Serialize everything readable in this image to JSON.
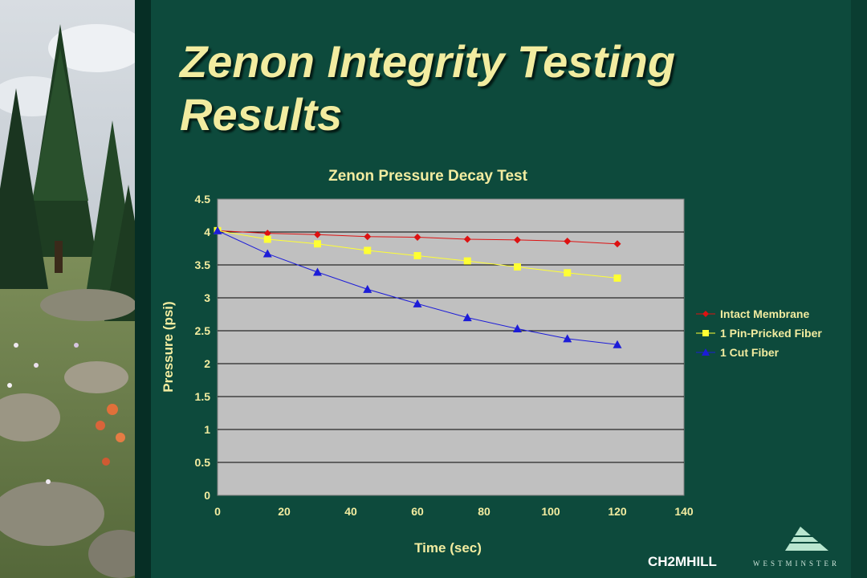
{
  "slide": {
    "title": "Zenon Integrity Testing Results"
  },
  "colors": {
    "background": "#0d4a3c",
    "title": "#f2eca0",
    "chart_text": "#f2eca0",
    "plot_area": "#c0c0c0"
  },
  "branding": {
    "company": "CH2MHILL",
    "mark": "WESTMINSTER"
  },
  "chart_data": {
    "type": "line",
    "title": "Zenon Pressure Decay Test",
    "xlabel": "Time (sec)",
    "ylabel": "Pressure (psi)",
    "xlim": [
      0,
      140
    ],
    "ylim": [
      0,
      4.5
    ],
    "xticks": [
      "0",
      "20",
      "40",
      "60",
      "80",
      "100",
      "120",
      "140"
    ],
    "yticks": [
      "0",
      "0.5",
      "1",
      "1.5",
      "2",
      "2.5",
      "3",
      "3.5",
      "4",
      "4.5"
    ],
    "grid": "horizontal",
    "legend": "right",
    "x": [
      0,
      15,
      30,
      45,
      60,
      75,
      90,
      105,
      120
    ],
    "series": [
      {
        "name": "Intact Membrane",
        "marker": "diamond",
        "color": "#dd1111",
        "values": [
          4.02,
          3.98,
          3.96,
          3.93,
          3.92,
          3.89,
          3.88,
          3.86,
          3.82
        ]
      },
      {
        "name": "1 Pin-Pricked Fiber",
        "marker": "square",
        "color": "#ffff33",
        "values": [
          4.02,
          3.89,
          3.82,
          3.72,
          3.64,
          3.56,
          3.47,
          3.38,
          3.3
        ]
      },
      {
        "name": "1 Cut Fiber",
        "marker": "triangle",
        "color": "#1c1cd8",
        "values": [
          4.02,
          3.67,
          3.39,
          3.13,
          2.91,
          2.7,
          2.53,
          2.38,
          2.29
        ]
      }
    ]
  }
}
